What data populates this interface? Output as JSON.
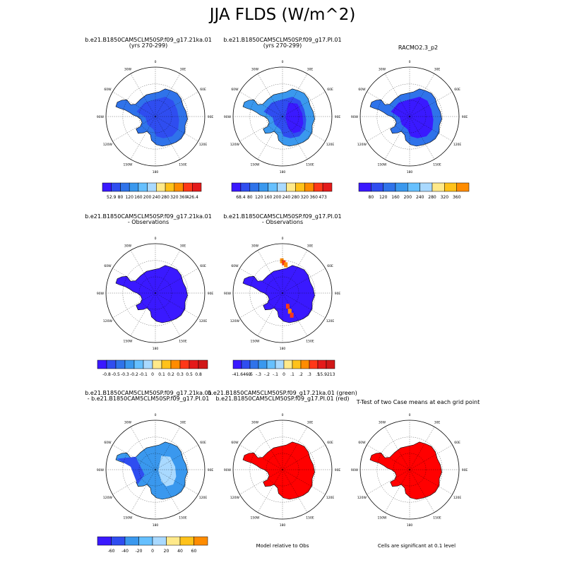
{
  "title": "JJA FLDS (W/m^2)",
  "colors": {
    "abs": [
      "#3a19ff",
      "#2f4df0",
      "#2f73ea",
      "#3a98ee",
      "#66c0ff",
      "#a9d9ff",
      "#ffe98a",
      "#ffc21a",
      "#ff8c00",
      "#ff3818",
      "#e41a1a",
      "#d01818"
    ],
    "abs9": [
      "#3a19ff",
      "#2f4df0",
      "#2f73ea",
      "#3a98ee",
      "#66c0ff",
      "#a9d9ff",
      "#ffe98a",
      "#ffc21a",
      "#ff8c00",
      "#ff3818",
      "#d01818"
    ],
    "diff": [
      "#3a19ff",
      "#2f4df0",
      "#2f73ea",
      "#3a98ee",
      "#66c0ff",
      "#a9d9ff",
      "#ffe98a",
      "#ffc21a",
      "#ff8c00",
      "#ff3818",
      "#e41a1a",
      "#d01818"
    ],
    "rel": [
      "#3a19ff",
      "#2f4df0",
      "#3a98ee",
      "#66c0ff",
      "#a9d9ff",
      "#ffe98a",
      "#ffc21a",
      "#ff8c00",
      "#ff3818",
      "#d01818"
    ],
    "fill_red": "#ff0000",
    "ocean": "#ffffff"
  },
  "map_labels": {
    "lon_labels": [
      "0",
      "30E",
      "60E",
      "90E",
      "120E",
      "150E",
      "180",
      "150W",
      "120W",
      "90W",
      "60W",
      "30W"
    ]
  },
  "chart_data": [
    {
      "type": "heatmap",
      "title": "b.e21.B1850CAM5CLM50SP.f09_g17.21ka.01",
      "subtitle": "(yrs 270-299)",
      "field": "JJA FLDS",
      "colorbar_labels": [
        "52.9",
        "80",
        "120",
        "160",
        "200",
        "240",
        "280",
        "320",
        "360",
        "426.4"
      ],
      "colorbar_levels": [
        52.9,
        80,
        120,
        160,
        200,
        240,
        280,
        320,
        360,
        426.4
      ],
      "interior_level": 80,
      "coast_level": 120
    },
    {
      "type": "heatmap",
      "title": "b.e21.B1850CAM5CLM50SP.f09_g17.PI.01",
      "subtitle": "(yrs 270-299)",
      "field": "JJA FLDS",
      "colorbar_labels": [
        "68.4",
        "80",
        "120",
        "160",
        "200",
        "240",
        "280",
        "320",
        "360",
        "473"
      ],
      "colorbar_levels": [
        68.4,
        80,
        120,
        160,
        200,
        240,
        280,
        320,
        360,
        473
      ],
      "interior_level": 80,
      "coast_level": 160
    },
    {
      "type": "heatmap",
      "title": "RACMO2.3_p2",
      "subtitle": "",
      "field": "JJA FLDS",
      "colorbar_labels": [
        "80",
        "120",
        "160",
        "200",
        "240",
        "280",
        "320",
        "360"
      ],
      "colorbar_levels": [
        80,
        120,
        160,
        200,
        240,
        280,
        320,
        360
      ],
      "interior_level": 80,
      "coast_level": 160
    },
    {
      "type": "heatmap",
      "title": "b.e21.B1850CAM5CLM50SP.f09_g17.21ka.01",
      "subtitle": "- Observations",
      "field": "difference",
      "colorbar_labels": [
        "-0.8",
        "-0.5",
        "-0.3",
        "-0.2",
        "-0.1",
        "0",
        "0.1",
        "0.2",
        "0.3",
        "0.5",
        "0.8"
      ],
      "colorbar_levels": [
        -0.8,
        -0.5,
        -0.3,
        -0.2,
        -0.1,
        0,
        0.1,
        0.2,
        0.3,
        0.5,
        0.8
      ],
      "interior_level": -0.8
    },
    {
      "type": "heatmap",
      "title": "b.e21.B1850CAM5CLM50SP.f09_g17.PI.01",
      "subtitle": "- Observations",
      "field": "difference",
      "colorbar_labels": [
        "-41.6469",
        "-.5",
        "-.3",
        "-.2",
        "-.1",
        "0",
        ".1",
        ".2",
        ".3",
        ".5",
        "15.9213"
      ],
      "colorbar_levels": [
        -41.6469,
        -0.5,
        -0.3,
        -0.2,
        -0.1,
        0,
        0.1,
        0.2,
        0.3,
        0.5,
        15.9213
      ],
      "interior_level": -0.5
    },
    {
      "type": "heatmap",
      "title": "b.e21.B1850CAM5CLM50SP.f09_g17.21ka.01",
      "subtitle": "- b.e21.B1850CAM5CLM50SP.f09_g17.PI.01",
      "field": "case difference",
      "colorbar_labels": [
        "-60",
        "-40",
        "-20",
        "0",
        "20",
        "40",
        "60"
      ],
      "colorbar_levels": [
        -60,
        -40,
        -20,
        0,
        20,
        40,
        60
      ],
      "interior_level": -20
    },
    {
      "type": "heatmap",
      "title": "b.e21.B1850CAM5CLM50SP.f09_g17.21ka.01 (green)",
      "subtitle": "b.e21.B1850CAM5CLM50SP.f09_g17.PI.01 (red)",
      "field": "model relative to obs",
      "footnote": "Model relative to Obs"
    },
    {
      "type": "heatmap",
      "title": "T-Test of two Case means at each grid point",
      "subtitle": "",
      "field": "significance",
      "footnote": "Cells are significant at 0.1 level"
    }
  ]
}
